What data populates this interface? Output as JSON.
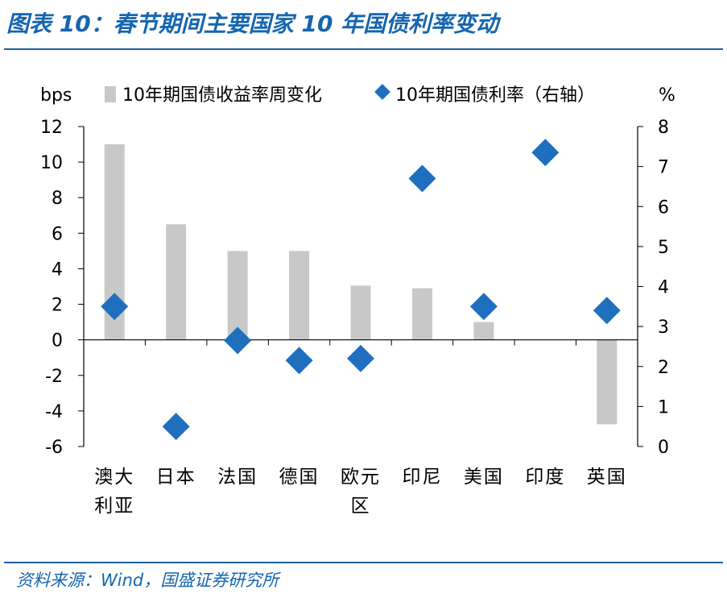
{
  "header": {
    "title": "图表 10：春节期间主要国家 10 年国债利率变动"
  },
  "footer": {
    "source": "资料来源：Wind，国盛证券研究所"
  },
  "colors": {
    "bar": "#c8c8c8",
    "marker": "#1f6fbf",
    "rule": "#1f5f9e",
    "title": "#1565b0"
  },
  "chart_data": {
    "type": "bar",
    "categories": [
      [
        "澳大",
        "利亚"
      ],
      [
        "日本"
      ],
      [
        "法国"
      ],
      [
        "德国"
      ],
      [
        "欧元",
        "区"
      ],
      [
        "印尼"
      ],
      [
        "美国"
      ],
      [
        "印度"
      ],
      [
        "英国"
      ]
    ],
    "series": [
      {
        "name": "10年期国债收益率周变化",
        "type": "bar",
        "axis": "left",
        "values": [
          11,
          6.5,
          5,
          5,
          3.05,
          2.9,
          1,
          0,
          -4.75
        ]
      },
      {
        "name": "10年期国债利率（右轴）",
        "type": "scatter",
        "axis": "right",
        "values": [
          3.5,
          0.5,
          2.65,
          2.15,
          2.2,
          6.7,
          3.5,
          7.35,
          3.4
        ]
      }
    ],
    "y_left": {
      "label": "bps",
      "min": -6,
      "max": 12,
      "ticks": [
        12,
        10,
        8,
        6,
        4,
        2,
        0,
        -2,
        -4,
        -6
      ]
    },
    "y_right": {
      "label": "%",
      "min": 0,
      "max": 8,
      "ticks": [
        8,
        7,
        6,
        5,
        4,
        3,
        2,
        1,
        0
      ]
    },
    "legend": {
      "placement": "top"
    },
    "grid": false
  }
}
